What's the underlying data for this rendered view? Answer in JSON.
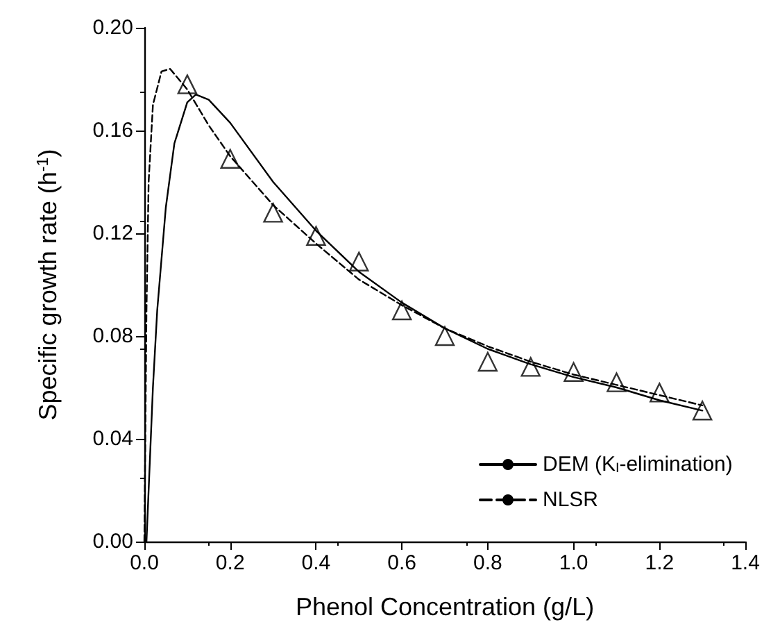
{
  "chart_data": {
    "type": "line",
    "xlabel": "Phenol Concentration (g/L)",
    "ylabel": "Specific growth rate (h$^{-1}$)",
    "xlim": [
      0,
      1.4
    ],
    "ylim": [
      0,
      0.2
    ],
    "xticks": [
      {
        "value": 0,
        "label": "0.0"
      },
      {
        "value": 0.2,
        "label": "0.2"
      },
      {
        "value": 0.4,
        "label": "0.4"
      },
      {
        "value": 0.6,
        "label": "0.6"
      },
      {
        "value": 0.8,
        "label": "0.8"
      },
      {
        "value": 1.0,
        "label": "1.0"
      },
      {
        "value": 1.2,
        "label": "1.2"
      },
      {
        "value": 1.4,
        "label": "1.4"
      }
    ],
    "yticks": [
      {
        "value": 0,
        "label": "0.00"
      },
      {
        "value": 0.04,
        "label": "0.04"
      },
      {
        "value": 0.08,
        "label": "0.08"
      },
      {
        "value": 0.12,
        "label": "0.12"
      },
      {
        "value": 0.16,
        "label": "0.16"
      },
      {
        "value": 0.2,
        "label": "0.20"
      }
    ],
    "grid": false,
    "legend": "bottom right",
    "series": [
      {
        "type": "scatter",
        "marker": "triangle",
        "color": "#000000",
        "x": [
          0.1,
          0.2,
          0.3,
          0.4,
          0.5,
          0.6,
          0.7,
          0.8,
          0.9,
          1.0,
          1.1,
          1.2,
          1.3
        ],
        "values": [
          0.178,
          0.149,
          0.128,
          0.119,
          0.109,
          0.09,
          0.08,
          0.07,
          0.068,
          0.066,
          0.062,
          0.058,
          0.051
        ]
      },
      {
        "name": "DEM (K$_{I}$-elimination)",
        "color": "#000000",
        "line_style": "solid",
        "marker": "none",
        "x": [
          0.005,
          0.01,
          0.02,
          0.03,
          0.05,
          0.07,
          0.1,
          0.12,
          0.15,
          0.2,
          0.3,
          0.4,
          0.5,
          0.6,
          0.7,
          0.8,
          0.9,
          1.0,
          1.1,
          1.2,
          1.3
        ],
        "values": [
          0,
          0.02,
          0.06,
          0.09,
          0.13,
          0.155,
          0.171,
          0.174,
          0.172,
          0.163,
          0.14,
          0.121,
          0.105,
          0.093,
          0.083,
          0.075,
          0.069,
          0.064,
          0.06,
          0.055,
          0.051
        ]
      },
      {
        "name": "NLSR",
        "color": "#000000",
        "line_style": "dashed",
        "marker": "none",
        "x": [
          0,
          0.005,
          0.01,
          0.02,
          0.04,
          0.06,
          0.08,
          0.1,
          0.15,
          0.2,
          0.3,
          0.4,
          0.5,
          0.6,
          0.7,
          0.8,
          0.9,
          1.0,
          1.1,
          1.2,
          1.3
        ],
        "values": [
          0,
          0.09,
          0.14,
          0.17,
          0.183,
          0.184,
          0.18,
          0.176,
          0.162,
          0.15,
          0.131,
          0.116,
          0.102,
          0.092,
          0.083,
          0.076,
          0.07,
          0.065,
          0.061,
          0.057,
          0.053
        ]
      }
    ]
  }
}
